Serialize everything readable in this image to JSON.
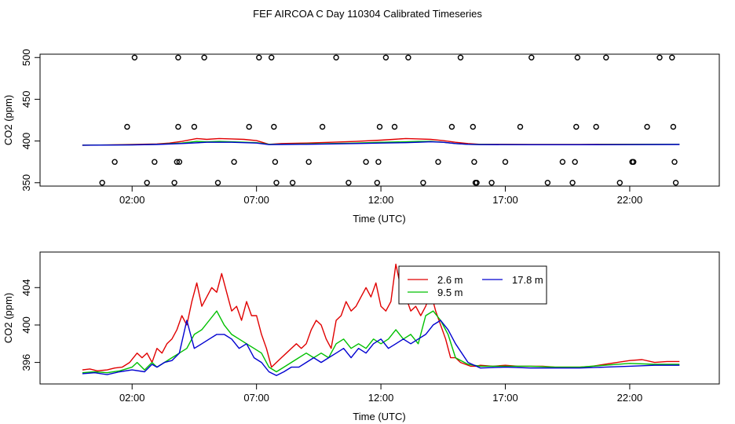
{
  "title": "FEF AIRCOA C  Day 110304  Calibrated Timeseries",
  "colors": {
    "s1": "#e00000",
    "s2": "#00c000",
    "s3": "#0000d0",
    "axis": "#000000"
  },
  "chart_data": [
    {
      "type": "scatter",
      "xlabel": "Time (UTC)",
      "ylabel": "CO2 (ppm)",
      "xlim": [
        -1.7,
        25.6
      ],
      "ylim": [
        346,
        504
      ],
      "xticks": [
        2,
        7,
        12,
        17,
        22
      ],
      "xtick_labels": [
        "02:00",
        "07:00",
        "12:00",
        "17:00",
        "22:00"
      ],
      "yticks": [
        350,
        400,
        450,
        500
      ],
      "ytick_labels": [
        "350",
        "400",
        "450",
        "500"
      ],
      "grid": false,
      "markers": {
        "x": [
          0.8,
          1.3,
          1.8,
          2.1,
          2.9,
          2.6,
          3.7,
          3.8,
          3.85,
          3.85,
          3.9,
          4.5,
          4.9,
          5.45,
          6.1,
          6.7,
          7.1,
          7.6,
          7.7,
          7.75,
          7.8,
          8.45,
          9.1,
          9.65,
          10.2,
          10.7,
          11.4,
          11.85,
          11.9,
          11.95,
          12.2,
          12.55,
          13.1,
          13.7,
          14.3,
          14.85,
          15.2,
          15.7,
          15.75,
          15.8,
          15.85,
          16.45,
          17.0,
          17.6,
          18.05,
          18.7,
          19.3,
          19.7,
          19.8,
          19.85,
          19.9,
          20.65,
          21.05,
          21.6,
          22.1,
          22.15,
          22.7,
          23.2,
          23.7,
          23.75,
          23.8,
          23.85
        ],
        "y": [
          350,
          375,
          417,
          500,
          375,
          350,
          350,
          375,
          417,
          500,
          375,
          417,
          500,
          350,
          375,
          417,
          500,
          500,
          417,
          375,
          350,
          350,
          375,
          417,
          500,
          350,
          375,
          350,
          375,
          417,
          500,
          417,
          500,
          350,
          375,
          417,
          500,
          417,
          375,
          350,
          350,
          350,
          375,
          417,
          500,
          350,
          375,
          350,
          375,
          417,
          500,
          417,
          500,
          350,
          375,
          375,
          417,
          500,
          500,
          417,
          375,
          350
        ]
      },
      "series": [
        {
          "name": "",
          "color": "#e00000",
          "x": [
            0,
            1,
            2,
            3,
            3.5,
            4,
            4.6,
            5,
            5.5,
            6,
            6.5,
            7,
            7.5,
            8,
            9,
            10,
            11,
            12,
            12.5,
            13,
            13.5,
            14,
            14.5,
            15,
            15.5,
            16,
            17,
            18,
            19,
            20,
            21,
            22,
            23,
            24
          ],
          "y": [
            395,
            395.3,
            395.8,
            396.5,
            397.5,
            399.5,
            403,
            402,
            403,
            402.5,
            402,
            400.5,
            396,
            397,
            397.5,
            398.5,
            399.5,
            401,
            402,
            403,
            402.5,
            402,
            400.5,
            398.5,
            397,
            396,
            396,
            395.8,
            395.8,
            395.8,
            396,
            396,
            396,
            396
          ]
        },
        {
          "name": "",
          "color": "#00c000",
          "x": [
            0,
            2,
            3,
            4,
            4.6,
            5,
            5.5,
            6,
            7,
            7.5,
            8,
            9,
            10,
            11,
            12,
            13,
            13.5,
            14,
            14.5,
            15,
            15.5,
            16,
            18,
            20,
            22,
            24
          ],
          "y": [
            395,
            395.5,
            396,
            397.5,
            399.5,
            399,
            399.5,
            399,
            398,
            396,
            396,
            396.5,
            397,
            397.5,
            398.5,
            399,
            399.5,
            399.5,
            398.5,
            397,
            396,
            395.8,
            395.7,
            395.7,
            395.8,
            396
          ]
        },
        {
          "name": "",
          "color": "#0000d0",
          "x": [
            0,
            2,
            3,
            4,
            5,
            6,
            7,
            7.5,
            8,
            9,
            10,
            11,
            12,
            13,
            13.5,
            14,
            14.5,
            15,
            15.5,
            16,
            18,
            20,
            22,
            24
          ],
          "y": [
            395,
            395.3,
            395.8,
            397,
            398.5,
            398.5,
            397.5,
            395.7,
            395.8,
            396,
            396.5,
            397,
            397.5,
            398,
            398.5,
            399,
            398.5,
            397,
            396,
            395.7,
            395.6,
            395.6,
            395.7,
            395.8
          ]
        }
      ]
    },
    {
      "type": "line",
      "xlabel": "Time (UTC)",
      "ylabel": "CO2 (ppm)",
      "xlim": [
        -1.7,
        25.6
      ],
      "ylim": [
        393.7,
        407.8
      ],
      "xticks": [
        2,
        7,
        12,
        17,
        22
      ],
      "xtick_labels": [
        "02:00",
        "07:00",
        "12:00",
        "17:00",
        "22:00"
      ],
      "yticks": [
        396,
        400,
        404
      ],
      "ytick_labels": [
        "396",
        "400",
        "404"
      ],
      "grid": false,
      "legend_position": "top-center",
      "series": [
        {
          "name": "2.6 m",
          "color": "#e00000",
          "x": [
            0,
            0.3,
            0.6,
            1,
            1.3,
            1.6,
            1.9,
            2.2,
            2.4,
            2.6,
            2.8,
            3.0,
            3.2,
            3.4,
            3.6,
            3.8,
            4.0,
            4.2,
            4.4,
            4.6,
            4.8,
            5.0,
            5.2,
            5.4,
            5.6,
            5.8,
            6.0,
            6.2,
            6.4,
            6.6,
            6.8,
            7.0,
            7.2,
            7.4,
            7.6,
            7.8,
            8.0,
            8.2,
            8.4,
            8.6,
            8.8,
            9.0,
            9.2,
            9.4,
            9.6,
            9.8,
            10.0,
            10.2,
            10.4,
            10.6,
            10.8,
            11.0,
            11.2,
            11.4,
            11.6,
            11.8,
            12.0,
            12.2,
            12.4,
            12.6,
            12.8,
            13.0,
            13.2,
            13.4,
            13.6,
            13.8,
            14.0,
            14.2,
            14.4,
            14.6,
            14.8,
            15.0,
            15.2,
            15.4,
            15.6,
            15.8,
            16.0,
            16.5,
            17,
            17.5,
            18,
            18.5,
            19,
            19.5,
            20,
            20.5,
            21,
            21.5,
            22,
            22.5,
            23,
            23.5,
            24
          ],
          "y": [
            395.2,
            395.3,
            395.1,
            395.2,
            395.4,
            395.5,
            396.0,
            397.0,
            396.5,
            397.0,
            396.0,
            397.5,
            397.0,
            398.0,
            398.5,
            399.5,
            401.0,
            400.0,
            402.5,
            404.5,
            402.0,
            403.0,
            404.0,
            403.5,
            405.5,
            403.5,
            401.5,
            402.0,
            400.5,
            402.5,
            401.0,
            401.0,
            399.0,
            397.5,
            395.5,
            396.0,
            396.5,
            397.0,
            397.5,
            398.0,
            397.5,
            398.0,
            399.5,
            400.5,
            400.0,
            398.5,
            397.5,
            400.5,
            401.0,
            402.5,
            401.5,
            402.0,
            403.0,
            404.0,
            403.0,
            404.5,
            402.0,
            401.5,
            402.5,
            406.5,
            404.0,
            403.0,
            401.5,
            402.0,
            401.0,
            402.0,
            403.5,
            401.5,
            400.0,
            398.5,
            396.5,
            396.5,
            396.0,
            395.8,
            395.6,
            395.6,
            395.7,
            395.6,
            395.7,
            395.6,
            395.6,
            395.6,
            395.5,
            395.5,
            395.5,
            395.6,
            395.8,
            396.0,
            396.2,
            396.3,
            396.0,
            396.1,
            396.1
          ]
        },
        {
          "name": "9.5 m",
          "color": "#00c000",
          "x": [
            0,
            0.5,
            1,
            1.5,
            2.0,
            2.2,
            2.5,
            2.8,
            3.0,
            3.3,
            3.6,
            3.9,
            4.2,
            4.5,
            4.8,
            5.1,
            5.4,
            5.7,
            6.0,
            6.3,
            6.6,
            6.9,
            7.2,
            7.5,
            7.8,
            8.1,
            8.4,
            8.7,
            9.0,
            9.3,
            9.6,
            9.9,
            10.2,
            10.5,
            10.8,
            11.1,
            11.4,
            11.7,
            12.0,
            12.3,
            12.6,
            12.9,
            13.2,
            13.5,
            13.8,
            14.1,
            14.4,
            14.7,
            15.0,
            15.5,
            16,
            17,
            18,
            19,
            20,
            21,
            22,
            23,
            24
          ],
          "y": [
            394.9,
            395.0,
            394.9,
            395.1,
            395.5,
            396.0,
            395.2,
            396.0,
            395.5,
            396.0,
            396.5,
            397.0,
            397.5,
            399.0,
            399.5,
            400.5,
            401.5,
            400.0,
            399.0,
            398.5,
            398.0,
            397.5,
            397.0,
            395.5,
            395.0,
            395.5,
            396.0,
            396.5,
            397.0,
            396.5,
            397.0,
            396.5,
            398.0,
            398.5,
            397.5,
            398.0,
            397.5,
            398.5,
            398.0,
            398.5,
            399.5,
            398.5,
            399.0,
            398.0,
            401.0,
            401.5,
            400.5,
            399.0,
            396.5,
            395.8,
            395.6,
            395.6,
            395.6,
            395.5,
            395.5,
            395.7,
            395.9,
            395.8,
            395.8
          ]
        },
        {
          "name": "17.8 m",
          "color": "#0000d0",
          "x": [
            0,
            0.5,
            1,
            1.5,
            2.0,
            2.5,
            2.8,
            3.0,
            3.3,
            3.6,
            3.9,
            4.2,
            4.5,
            4.8,
            5.1,
            5.4,
            5.7,
            6.0,
            6.3,
            6.6,
            6.9,
            7.2,
            7.5,
            7.8,
            8.1,
            8.4,
            8.7,
            9.0,
            9.3,
            9.6,
            9.9,
            10.2,
            10.5,
            10.8,
            11.1,
            11.4,
            11.7,
            12.0,
            12.3,
            12.6,
            12.9,
            13.2,
            13.5,
            13.8,
            14.1,
            14.4,
            14.7,
            15.0,
            15.5,
            16,
            17,
            18,
            19,
            20,
            21,
            22,
            23,
            24
          ],
          "y": [
            394.8,
            394.9,
            394.7,
            395.0,
            395.2,
            395.0,
            395.8,
            395.5,
            396.0,
            396.2,
            397.0,
            400.5,
            397.5,
            398.0,
            398.5,
            399.0,
            399.0,
            398.5,
            397.5,
            398.0,
            396.5,
            396.0,
            395.0,
            394.6,
            395.0,
            395.5,
            395.5,
            396.0,
            396.5,
            396.0,
            396.5,
            397.0,
            397.5,
            396.5,
            397.5,
            397.0,
            398.0,
            398.5,
            397.5,
            398.0,
            398.5,
            398.0,
            398.5,
            399.0,
            400.0,
            400.5,
            399.5,
            398.0,
            396.0,
            395.4,
            395.5,
            395.4,
            395.4,
            395.4,
            395.5,
            395.6,
            395.7,
            395.7
          ]
        }
      ]
    }
  ]
}
